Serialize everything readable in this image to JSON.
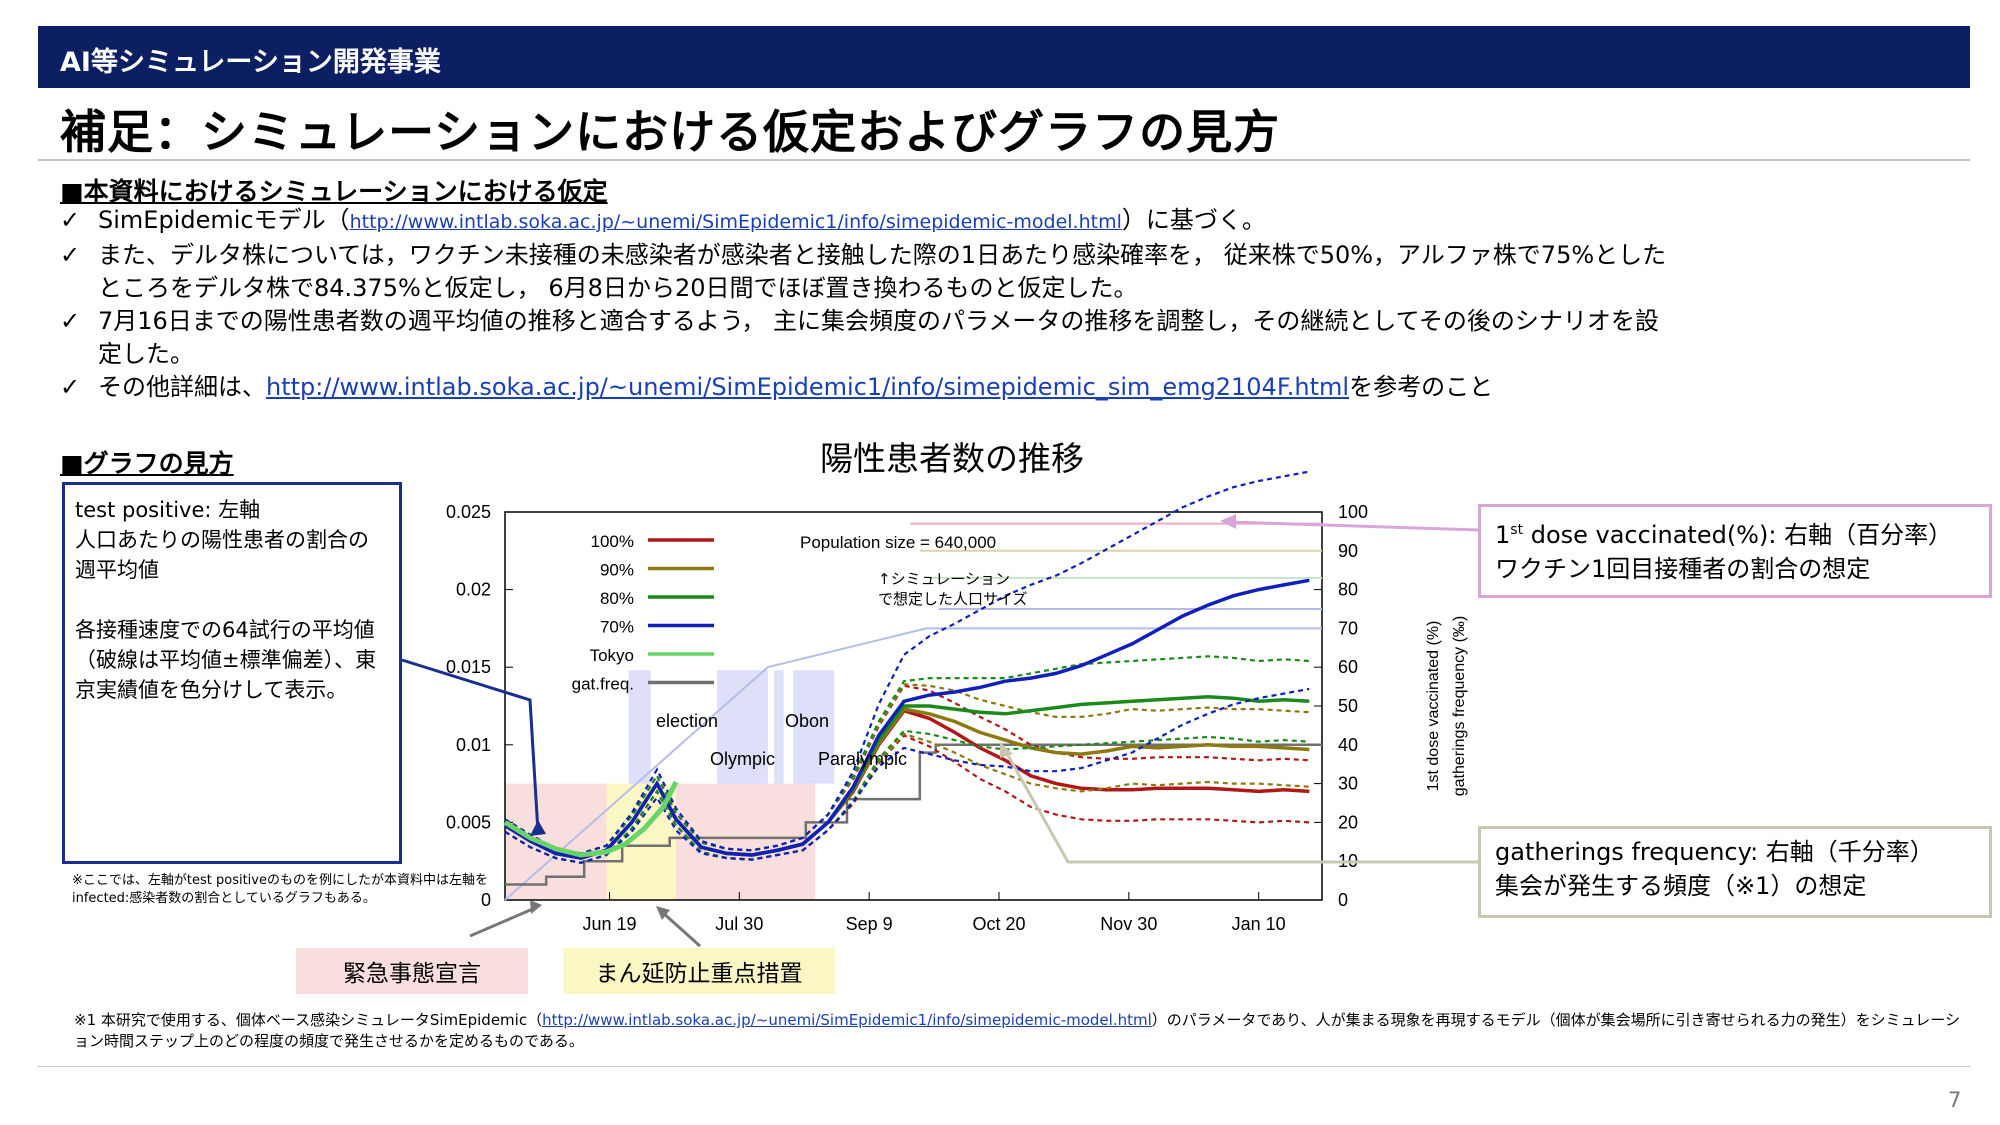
{
  "header": {
    "banner": "AI等シミュレーション開発事業",
    "title": "補足：シミュレーションにおける仮定およびグラフの見方"
  },
  "assumptions": {
    "heading": "■本資料におけるシミュレーションにおける仮定",
    "check": "✓",
    "b1_pre": "SimEpidemicモデル（",
    "b1_link": "http://www.intlab.soka.ac.jp/~unemi/SimEpidemic1/info/simepidemic-model.html",
    "b1_post": "）に基づく。",
    "b2_l1": "また、デルタ株については，ワクチン未接種の未感染者が感染者と接触した際の1日あたり感染確率を， 従来株で50%，アルファ株で75%とした",
    "b2_l2": "ところをデルタ株で84.375%と仮定し， 6月8日から20日間でほぼ置き換わるものと仮定した。",
    "b3_l1": "7月16日までの陽性患者数の週平均値の推移と適合するよう， 主に集会頻度のパラメータの推移を調整し，その継続としてその後のシナリオを設",
    "b3_l2": "定した。",
    "b4_pre": "その他詳細は、",
    "b4_link": "http://www.intlab.soka.ac.jp/~unemi/SimEpidemic1/info/simepidemic_sim_emg2104F.html",
    "b4_post": "を参考のこと"
  },
  "graph_guide": {
    "heading": "■グラフの見方",
    "box_l1": "test positive: 左軸",
    "box_l2": "人口あたりの陽性患者の割合の週平均値",
    "box_l3": "各接種速度での64試行の平均値（破線は平均値±標準偏差）、東京実績値を色分けして表示。",
    "small_note": "※ここでは、左軸がtest positiveのものを例にしたが本資料中は左軸をinfected:感染者数の割合としているグラフもある。",
    "vacc_l1_pre": "1",
    "vacc_l1_sup": "st",
    "vacc_l1_post": " dose vaccinated(%): 右軸（百分率）",
    "vacc_l2": "ワクチン1回目接種者の割合の想定",
    "gath_l1": "gatherings frequency: 右軸（千分率）",
    "gath_l2": "集会が発生する頻度（※1）の想定",
    "tag_emergency": "緊急事態宣言",
    "tag_quasi": "まん延防止重点措置"
  },
  "footnote": {
    "pre": "※1 本研究で使用する、個体ベース感染シミュレータSimEpidemic（",
    "link": "http://www.intlab.soka.ac.jp/~unemi/SimEpidemic1/info/simepidemic-model.html",
    "post": "）のパラメータであり、人が集まる現象を再現するモデル（個体が集会場所に引き寄せられる力の発生）をシミュレーション時間ステップ上のどの程度の頻度で発生させるかを定めるものである。"
  },
  "page_number": "7",
  "chart_data": {
    "type": "line",
    "title": "陽性患者数の推移",
    "annotation_population": "Population size = 640,000",
    "annotation_sim": "↑シミュレーションで想定した人口サイズ",
    "x_tick_labels": [
      "Jun 19",
      "Jul 30",
      "Sep 9",
      "Oct 20",
      "Nov 30",
      "Jan 10"
    ],
    "x_ticks_day": [
      0,
      41,
      82,
      123,
      164,
      205
    ],
    "xlim_day": [
      -33,
      225
    ],
    "ylim_left": [
      0,
      0.025
    ],
    "y_ticks_left": [
      "0",
      "0.005",
      "0.01",
      "0.015",
      "0.02",
      "0.025"
    ],
    "y_ticks_left_values": [
      0,
      0.005,
      0.01,
      0.015,
      0.02,
      0.025
    ],
    "ylim_right": [
      0,
      100
    ],
    "y_ticks_right": [
      "0",
      "10",
      "20",
      "30",
      "40",
      "50",
      "60",
      "70",
      "80",
      "90",
      "100"
    ],
    "ylabel_right_1": "1st dose vaccinated (%)",
    "ylabel_right_2": "gatherings frequency (‰)",
    "legend": [
      {
        "name": "100%",
        "color": "#b01818"
      },
      {
        "name": "90%",
        "color": "#8c7a10"
      },
      {
        "name": "80%",
        "color": "#1a8a1a"
      },
      {
        "name": "70%",
        "color": "#1020b8"
      },
      {
        "name": "Tokyo",
        "color": "#66d466"
      },
      {
        "name": "gat.freq.",
        "color": "#707070"
      }
    ],
    "events": [
      {
        "label": "election",
        "start_day": 6,
        "end_day": 13
      },
      {
        "label": "Olympic",
        "start_day": 34,
        "end_day": 50
      },
      {
        "label": "Obon",
        "start_day": 52,
        "end_day": 55
      },
      {
        "label": "Paralympic",
        "start_day": 58,
        "end_day": 71
      }
    ],
    "measures": [
      {
        "label": "緊急事態宣言",
        "start_day": -33,
        "end_day": -1,
        "color": "#f9dede"
      },
      {
        "label": "まん延防止重点措置",
        "start_day": -1,
        "end_day": 21,
        "color": "#fbf7c4"
      },
      {
        "label": "緊急事態宣言",
        "start_day": 21,
        "end_day": 65,
        "color": "#f9dede"
      }
    ],
    "x_days": [
      -33,
      -25,
      -17,
      -9,
      -1,
      7,
      15,
      21,
      29,
      37,
      45,
      53,
      61,
      69,
      77,
      85,
      93,
      101,
      109,
      117,
      125,
      133,
      141,
      149,
      157,
      165,
      173,
      181,
      189,
      197,
      205,
      213,
      221
    ],
    "series": [
      {
        "name": "100%",
        "color": "#b01818",
        "values": [
          0.0048,
          0.0038,
          0.003,
          0.0027,
          0.0032,
          0.005,
          0.0075,
          0.0052,
          0.0034,
          0.003,
          0.0029,
          0.0032,
          0.0036,
          0.005,
          0.007,
          0.01,
          0.0122,
          0.0117,
          0.0108,
          0.0098,
          0.009,
          0.008,
          0.0075,
          0.0072,
          0.0071,
          0.0071,
          0.0072,
          0.0072,
          0.0072,
          0.0071,
          0.007,
          0.0071,
          0.007
        ],
        "sd": [
          0.0004,
          0.0004,
          0.0003,
          0.0003,
          0.0003,
          0.0004,
          0.0005,
          0.0004,
          0.0003,
          0.0003,
          0.0003,
          0.0003,
          0.0004,
          0.0005,
          0.0008,
          0.0012,
          0.0016,
          0.0018,
          0.0019,
          0.002,
          0.002,
          0.002,
          0.002,
          0.002,
          0.002,
          0.002,
          0.002,
          0.002,
          0.002,
          0.002,
          0.002,
          0.002,
          0.002
        ]
      },
      {
        "name": "90%",
        "color": "#8c7a10",
        "values": [
          0.0048,
          0.0038,
          0.003,
          0.0027,
          0.0032,
          0.005,
          0.0075,
          0.0052,
          0.0034,
          0.003,
          0.0029,
          0.0032,
          0.0036,
          0.005,
          0.0071,
          0.0101,
          0.0123,
          0.012,
          0.0115,
          0.0108,
          0.0103,
          0.0098,
          0.0095,
          0.0094,
          0.0096,
          0.0099,
          0.0098,
          0.0099,
          0.01,
          0.0099,
          0.0099,
          0.0098,
          0.0097
        ],
        "sd": [
          0.0004,
          0.0004,
          0.0003,
          0.0003,
          0.0003,
          0.0004,
          0.0005,
          0.0004,
          0.0003,
          0.0003,
          0.0003,
          0.0003,
          0.0004,
          0.0005,
          0.0008,
          0.0012,
          0.0016,
          0.0018,
          0.002,
          0.0021,
          0.0022,
          0.0023,
          0.0023,
          0.0024,
          0.0024,
          0.0024,
          0.0024,
          0.0024,
          0.0024,
          0.0024,
          0.0024,
          0.0024,
          0.0024
        ]
      },
      {
        "name": "80%",
        "color": "#1a8a1a",
        "values": [
          0.0048,
          0.0038,
          0.003,
          0.0027,
          0.0032,
          0.005,
          0.0075,
          0.0052,
          0.0034,
          0.003,
          0.0029,
          0.0032,
          0.0036,
          0.005,
          0.0072,
          0.0103,
          0.0125,
          0.0125,
          0.0123,
          0.0121,
          0.012,
          0.0122,
          0.0124,
          0.0126,
          0.0127,
          0.0128,
          0.0129,
          0.013,
          0.0131,
          0.013,
          0.0128,
          0.0129,
          0.0128
        ],
        "sd": [
          0.0004,
          0.0004,
          0.0003,
          0.0003,
          0.0003,
          0.0004,
          0.0005,
          0.0004,
          0.0003,
          0.0003,
          0.0003,
          0.0003,
          0.0004,
          0.0005,
          0.0008,
          0.0012,
          0.0016,
          0.0018,
          0.002,
          0.0022,
          0.0023,
          0.0024,
          0.0025,
          0.0026,
          0.0026,
          0.0026,
          0.0026,
          0.0026,
          0.0026,
          0.0026,
          0.0026,
          0.0026,
          0.0026
        ]
      },
      {
        "name": "70%",
        "color": "#1020b8",
        "values": [
          0.0048,
          0.0038,
          0.003,
          0.0027,
          0.0032,
          0.005,
          0.0075,
          0.0052,
          0.0034,
          0.003,
          0.0029,
          0.0032,
          0.0036,
          0.005,
          0.0073,
          0.0106,
          0.0128,
          0.0132,
          0.0134,
          0.0137,
          0.0141,
          0.0143,
          0.0146,
          0.0151,
          0.0158,
          0.0165,
          0.0174,
          0.0183,
          0.019,
          0.0196,
          0.02,
          0.0203,
          0.0206
        ],
        "sd": [
          0.0004,
          0.0004,
          0.0003,
          0.0003,
          0.0003,
          0.0006,
          0.0009,
          0.0007,
          0.0004,
          0.0003,
          0.0003,
          0.0003,
          0.0004,
          0.0005,
          0.001,
          0.002,
          0.003,
          0.0038,
          0.0044,
          0.005,
          0.0055,
          0.006,
          0.0063,
          0.0066,
          0.0068,
          0.007,
          0.007,
          0.007,
          0.007,
          0.007,
          0.007,
          0.007,
          0.007
        ]
      },
      {
        "name": "Tokyo",
        "color": "#66d466",
        "values": [
          0.005,
          0.004,
          0.0033,
          0.0029,
          0.0031,
          0.0036,
          0.0046,
          0.006,
          0.0076
        ],
        "x_days": [
          -33,
          -25,
          -17,
          -9,
          -1,
          5,
          11,
          17,
          21
        ]
      }
    ],
    "gatherings_frequency": {
      "x_days": [
        -33,
        -20,
        -20,
        -8,
        -8,
        4,
        4,
        19,
        19,
        27,
        27,
        62,
        62,
        75,
        75,
        98,
        98,
        103,
        103,
        225
      ],
      "values": [
        4,
        4,
        6,
        6,
        10,
        10,
        14,
        14,
        16,
        16,
        16,
        16,
        20,
        20,
        26,
        26,
        38,
        38,
        40,
        40
      ]
    },
    "vaccination_line_x": [
      -33,
      50,
      100,
      225
    ],
    "vaccination_line_y": [
      0,
      60,
      70,
      70
    ]
  }
}
